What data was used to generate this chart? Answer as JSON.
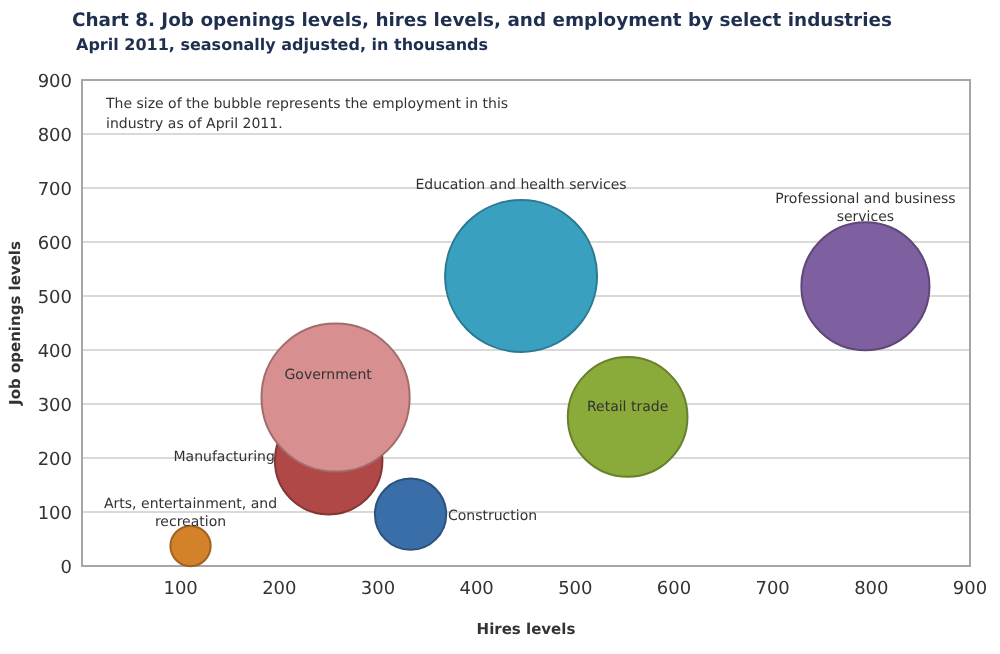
{
  "chart_data": {
    "type": "bubble",
    "title": "Chart 8. Job openings levels, hires levels, and employment by select industries",
    "subtitle": "April 2011, seasonally adjusted, in thousands",
    "xlabel": "Hires levels",
    "ylabel": "Job openings levels",
    "annotations": [
      "The size of the bubble represents the employment in this industry as of April 2011."
    ],
    "xlim": [
      0,
      900
    ],
    "xticks": [
      100,
      200,
      300,
      400,
      500,
      600,
      700,
      800,
      900
    ],
    "ylim": [
      0,
      900
    ],
    "yticks": [
      0,
      100,
      200,
      300,
      400,
      500,
      600,
      700,
      800,
      900
    ],
    "grid": "y",
    "series": [
      {
        "name": "Arts, entertainment,  and recreation",
        "color": "#d4822a",
        "x": [
          110
        ],
        "values": [
          37
        ],
        "sizes": [
          0.07
        ]
      },
      {
        "name": "Manufacturing",
        "color": "#b04848",
        "x": [
          250
        ],
        "values": [
          195
        ],
        "sizes": [
          0.5
        ]
      },
      {
        "name": "Government",
        "color": "#d88f8f",
        "x": [
          257
        ],
        "values": [
          312
        ],
        "sizes": [
          0.95
        ]
      },
      {
        "name": "Construction",
        "color": "#3a6ea8",
        "x": [
          333
        ],
        "values": [
          96
        ],
        "sizes": [
          0.22
        ]
      },
      {
        "name": "Education and health services",
        "color": "#3aa0c0",
        "x": [
          445
        ],
        "values": [
          537
        ],
        "sizes": [
          1
        ]
      },
      {
        "name": "Retail trade",
        "color": "#8aaa3a",
        "x": [
          553
        ],
        "values": [
          276
        ],
        "sizes": [
          0.62
        ]
      },
      {
        "name": "Professional and business services",
        "color": "#7e5fa0",
        "x": [
          794
        ],
        "values": [
          518
        ],
        "sizes": [
          0.71
        ]
      }
    ]
  }
}
